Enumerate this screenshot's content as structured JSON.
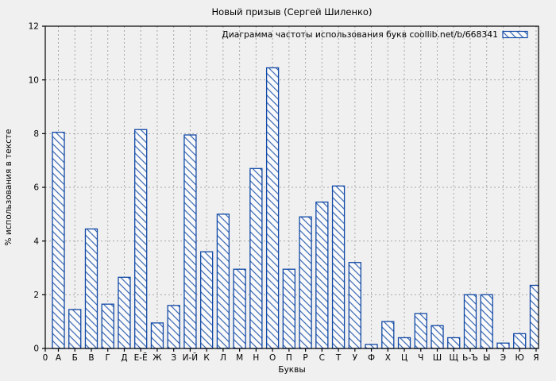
{
  "page": {
    "background": "#f0f0f0"
  },
  "chart_data": {
    "type": "bar",
    "title": "Новый призыв (Сергей Шиленко)",
    "legend_label": "Диаграмма частоты использования букв coollib.net/b/668341",
    "legend_position": "top-right-inside",
    "xlabel": "Буквы",
    "ylabel": "% использования в тексте",
    "x_origin_label": "0",
    "categories": [
      "А",
      "Б",
      "В",
      "Г",
      "Д",
      "Е-Ё",
      "Ж",
      "З",
      "И-Й",
      "К",
      "Л",
      "М",
      "Н",
      "О",
      "П",
      "Р",
      "С",
      "Т",
      "У",
      "Ф",
      "Х",
      "Ц",
      "Ч",
      "Ш",
      "Щ",
      "Ь-Ъ",
      "Ы",
      "Э",
      "Ю",
      "Я"
    ],
    "values": [
      8.05,
      1.45,
      4.45,
      1.65,
      2.65,
      8.15,
      0.95,
      1.6,
      7.95,
      3.6,
      5.0,
      2.95,
      6.7,
      10.45,
      2.95,
      4.9,
      5.45,
      6.05,
      3.2,
      0.15,
      1.0,
      0.4,
      1.3,
      0.85,
      0.4,
      2.0,
      2.0,
      0.2,
      0.55,
      2.35
    ],
    "ylim": [
      0,
      12
    ],
    "yticks": [
      0,
      2,
      4,
      6,
      8,
      10,
      12
    ],
    "grid": true,
    "bar_style": "diagonal-hatch",
    "colors": {
      "bar_border": "#1149a6",
      "bar_hatch": "#1149a6",
      "bar_fill": "#fafafa",
      "grid": "#a6a6a6",
      "axis": "#000000",
      "text": "#000000",
      "background": "#f0f0f0"
    }
  }
}
